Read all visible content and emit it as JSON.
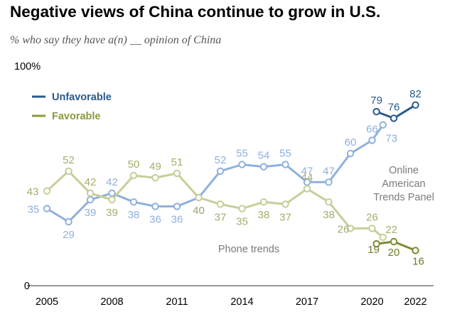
{
  "chart_data": {
    "type": "line",
    "title": "Negative views of China continue to grow in U.S.",
    "subtitle": "% who say they have a(n) __ opinion of China",
    "ylim": [
      0,
      100
    ],
    "y_ticks": [
      {
        "v": 100,
        "label": "100%"
      },
      {
        "v": 0,
        "label": "0"
      }
    ],
    "x_ticks": [
      "2005",
      "2008",
      "2011",
      "2014",
      "2017",
      "2020",
      "2022"
    ],
    "grid": false,
    "legend_position": "top-left",
    "series": [
      {
        "name": "Unfavorable",
        "color": "#8fb0de",
        "points": [
          {
            "x": 2005,
            "y": 35
          },
          {
            "x": 2006,
            "y": 29
          },
          {
            "x": 2007,
            "y": 39
          },
          {
            "x": 2008,
            "y": 42
          },
          {
            "x": 2009,
            "y": 38
          },
          {
            "x": 2010,
            "y": 36
          },
          {
            "x": 2011,
            "y": 36
          },
          {
            "x": 2012,
            "y": 40
          },
          {
            "x": 2013,
            "y": 52
          },
          {
            "x": 2014,
            "y": 55
          },
          {
            "x": 2015,
            "y": 54
          },
          {
            "x": 2016,
            "y": 55
          },
          {
            "x": 2017,
            "y": 47
          },
          {
            "x": 2018,
            "y": 47
          },
          {
            "x": 2019,
            "y": 60
          },
          {
            "x": 2020,
            "y": 66
          },
          {
            "x": 2020.5,
            "y": 73
          }
        ]
      },
      {
        "name": "",
        "color": "#2a5a8c",
        "points": [
          {
            "x": 2020.2,
            "y": 79
          },
          {
            "x": 2021,
            "y": 76
          },
          {
            "x": 2022,
            "y": 82
          }
        ]
      },
      {
        "name": "Favorable",
        "color": "#c6ce97",
        "points": [
          {
            "x": 2005,
            "y": 43
          },
          {
            "x": 2006,
            "y": 52
          },
          {
            "x": 2007,
            "y": 42
          },
          {
            "x": 2008,
            "y": 39
          },
          {
            "x": 2009,
            "y": 50
          },
          {
            "x": 2010,
            "y": 49
          },
          {
            "x": 2011,
            "y": 51
          },
          {
            "x": 2012,
            "y": 40
          },
          {
            "x": 2013,
            "y": 37
          },
          {
            "x": 2014,
            "y": 35
          },
          {
            "x": 2015,
            "y": 38
          },
          {
            "x": 2016,
            "y": 37
          },
          {
            "x": 2017,
            "y": 44
          },
          {
            "x": 2018,
            "y": 38
          },
          {
            "x": 2019,
            "y": 26
          },
          {
            "x": 2020,
            "y": 26
          },
          {
            "x": 2020.5,
            "y": 22
          }
        ]
      },
      {
        "name": "",
        "color": "#7d8b2e",
        "points": [
          {
            "x": 2020.2,
            "y": 19
          },
          {
            "x": 2021,
            "y": 20
          },
          {
            "x": 2022,
            "y": 16
          }
        ]
      }
    ],
    "legend": [
      {
        "label": "Unfavorable",
        "color": "#2a5a8c"
      },
      {
        "label": "Favorable",
        "color": "#8a9a3a"
      }
    ],
    "annotations": [
      {
        "text": "Online American Trends Panel",
        "lines": [
          "Online",
          "American",
          "Trends Panel"
        ]
      },
      {
        "text": "Phone trends"
      }
    ]
  }
}
